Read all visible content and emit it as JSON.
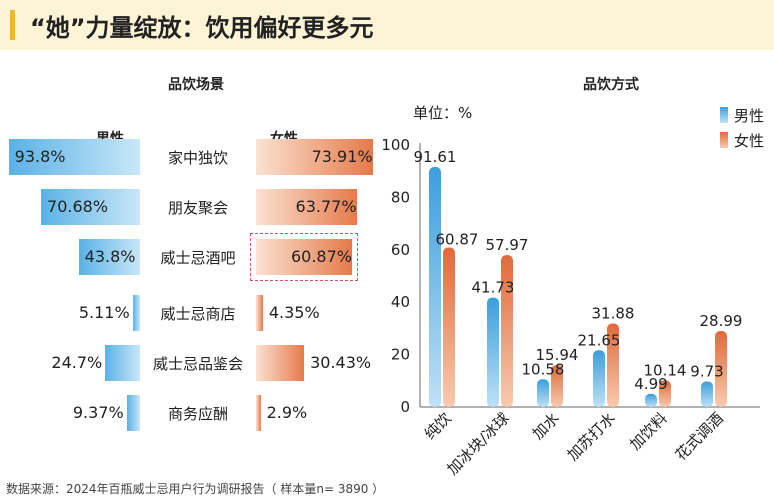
{
  "title": "“她”力量绽放：饮用偏好更多元",
  "colors": {
    "male": "#5ab2e6",
    "female": "#e57a4a",
    "accent": "#f2b632",
    "highlight": "#d9526a"
  },
  "chart_data": [
    {
      "type": "bar",
      "orientation": "horizontal-butterfly",
      "title": "品饮场景",
      "headers": {
        "male": "男性",
        "female": "女性"
      },
      "categories": [
        "家中独饮",
        "朋友聚会",
        "威士忌酒吧",
        "威士忌商店",
        "威士忌品鉴会",
        "商务应酬"
      ],
      "series": [
        {
          "name": "男性",
          "values": [
            93.8,
            70.68,
            43.8,
            5.11,
            24.7,
            9.37
          ],
          "labels": [
            "93.8%",
            "70.68%",
            "43.8%",
            "5.11%",
            "24.7%",
            "9.37%"
          ]
        },
        {
          "name": "女性",
          "values": [
            73.91,
            63.77,
            60.87,
            4.35,
            30.43,
            2.9
          ],
          "labels": [
            "73.91%",
            "63.77%",
            "60.87%",
            "4.35%",
            "30.43%",
            "2.9%"
          ]
        }
      ],
      "highlight_category": "威士忌酒吧"
    },
    {
      "type": "bar",
      "title": "品饮方式",
      "unit_label": "单位：%",
      "categories": [
        "纯饮",
        "加冰块/冰球",
        "加水",
        "加苏打水",
        "加饮料",
        "花式调酒"
      ],
      "series": [
        {
          "name": "男性",
          "values": [
            91.61,
            41.73,
            10.58,
            21.65,
            4.99,
            9.73
          ]
        },
        {
          "name": "女性",
          "values": [
            60.87,
            57.97,
            15.94,
            31.88,
            10.14,
            28.99
          ]
        }
      ],
      "ylim": [
        0,
        100
      ],
      "yticks": [
        0,
        20,
        40,
        60,
        80,
        100
      ],
      "legend_position": "top-right"
    }
  ],
  "source": "数据来源：2024年百瓶威士忌用户行为调研报告（ 样本量n= 3890 ）"
}
